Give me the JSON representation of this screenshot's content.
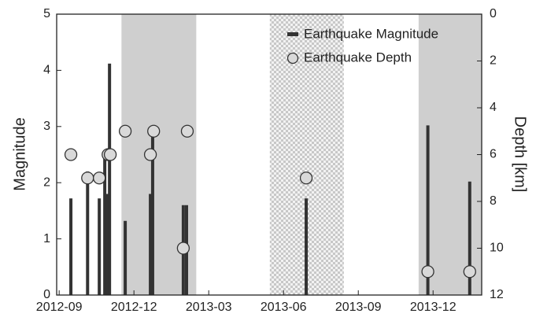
{
  "chart_data": {
    "type": "bar-scatter",
    "y_label": "Magnitude",
    "y2_label": "Depth [km]",
    "xlim": [
      -0.1,
      16.95
    ],
    "xticks": [
      {
        "value": 0,
        "label": "2012-09"
      },
      {
        "value": 3,
        "label": "2012-12"
      },
      {
        "value": 6,
        "label": "2013-03"
      },
      {
        "value": 9,
        "label": "2013-06"
      },
      {
        "value": 12,
        "label": "2013-09"
      },
      {
        "value": 15,
        "label": "2013-12"
      }
    ],
    "ylim": [
      0,
      5
    ],
    "yticks": [
      0,
      1,
      2,
      3,
      4,
      5
    ],
    "y2lim": [
      12,
      0
    ],
    "y2ticks": [
      0,
      2,
      4,
      6,
      8,
      10,
      12
    ],
    "shaded_regions": [
      {
        "x": [
          2.5,
          5.5
        ],
        "style": "solid"
      },
      {
        "x": [
          8.45,
          11.42
        ],
        "style": "checker"
      },
      {
        "x": [
          14.42,
          16.95
        ],
        "style": "solid"
      }
    ],
    "legend_position": "upper right",
    "series": [
      {
        "name": "Earthquake Magnitude",
        "color": "#333333",
        "mark": "bar",
        "x": [
          0.47,
          1.14,
          1.61,
          1.83,
          1.92,
          2.02,
          2.65,
          3.66,
          3.75,
          4.98,
          5.11,
          9.91,
          14.79,
          16.47
        ],
        "values": [
          1.72,
          2.2,
          1.72,
          2.5,
          1.8,
          4.12,
          1.32,
          1.8,
          2.85,
          1.6,
          1.6,
          1.72,
          3.02,
          2.02
        ]
      },
      {
        "name": "Earthquake Depth",
        "color": "#d9d9d9",
        "mark": "circle",
        "axis": "y2",
        "x": [
          0.47,
          1.14,
          1.61,
          1.96,
          2.05,
          2.65,
          3.66,
          3.79,
          4.98,
          5.14,
          9.91,
          14.79,
          16.47
        ],
        "values": [
          6,
          7,
          7,
          6,
          6,
          5,
          6,
          5,
          10,
          5,
          7,
          11,
          11
        ]
      }
    ]
  }
}
